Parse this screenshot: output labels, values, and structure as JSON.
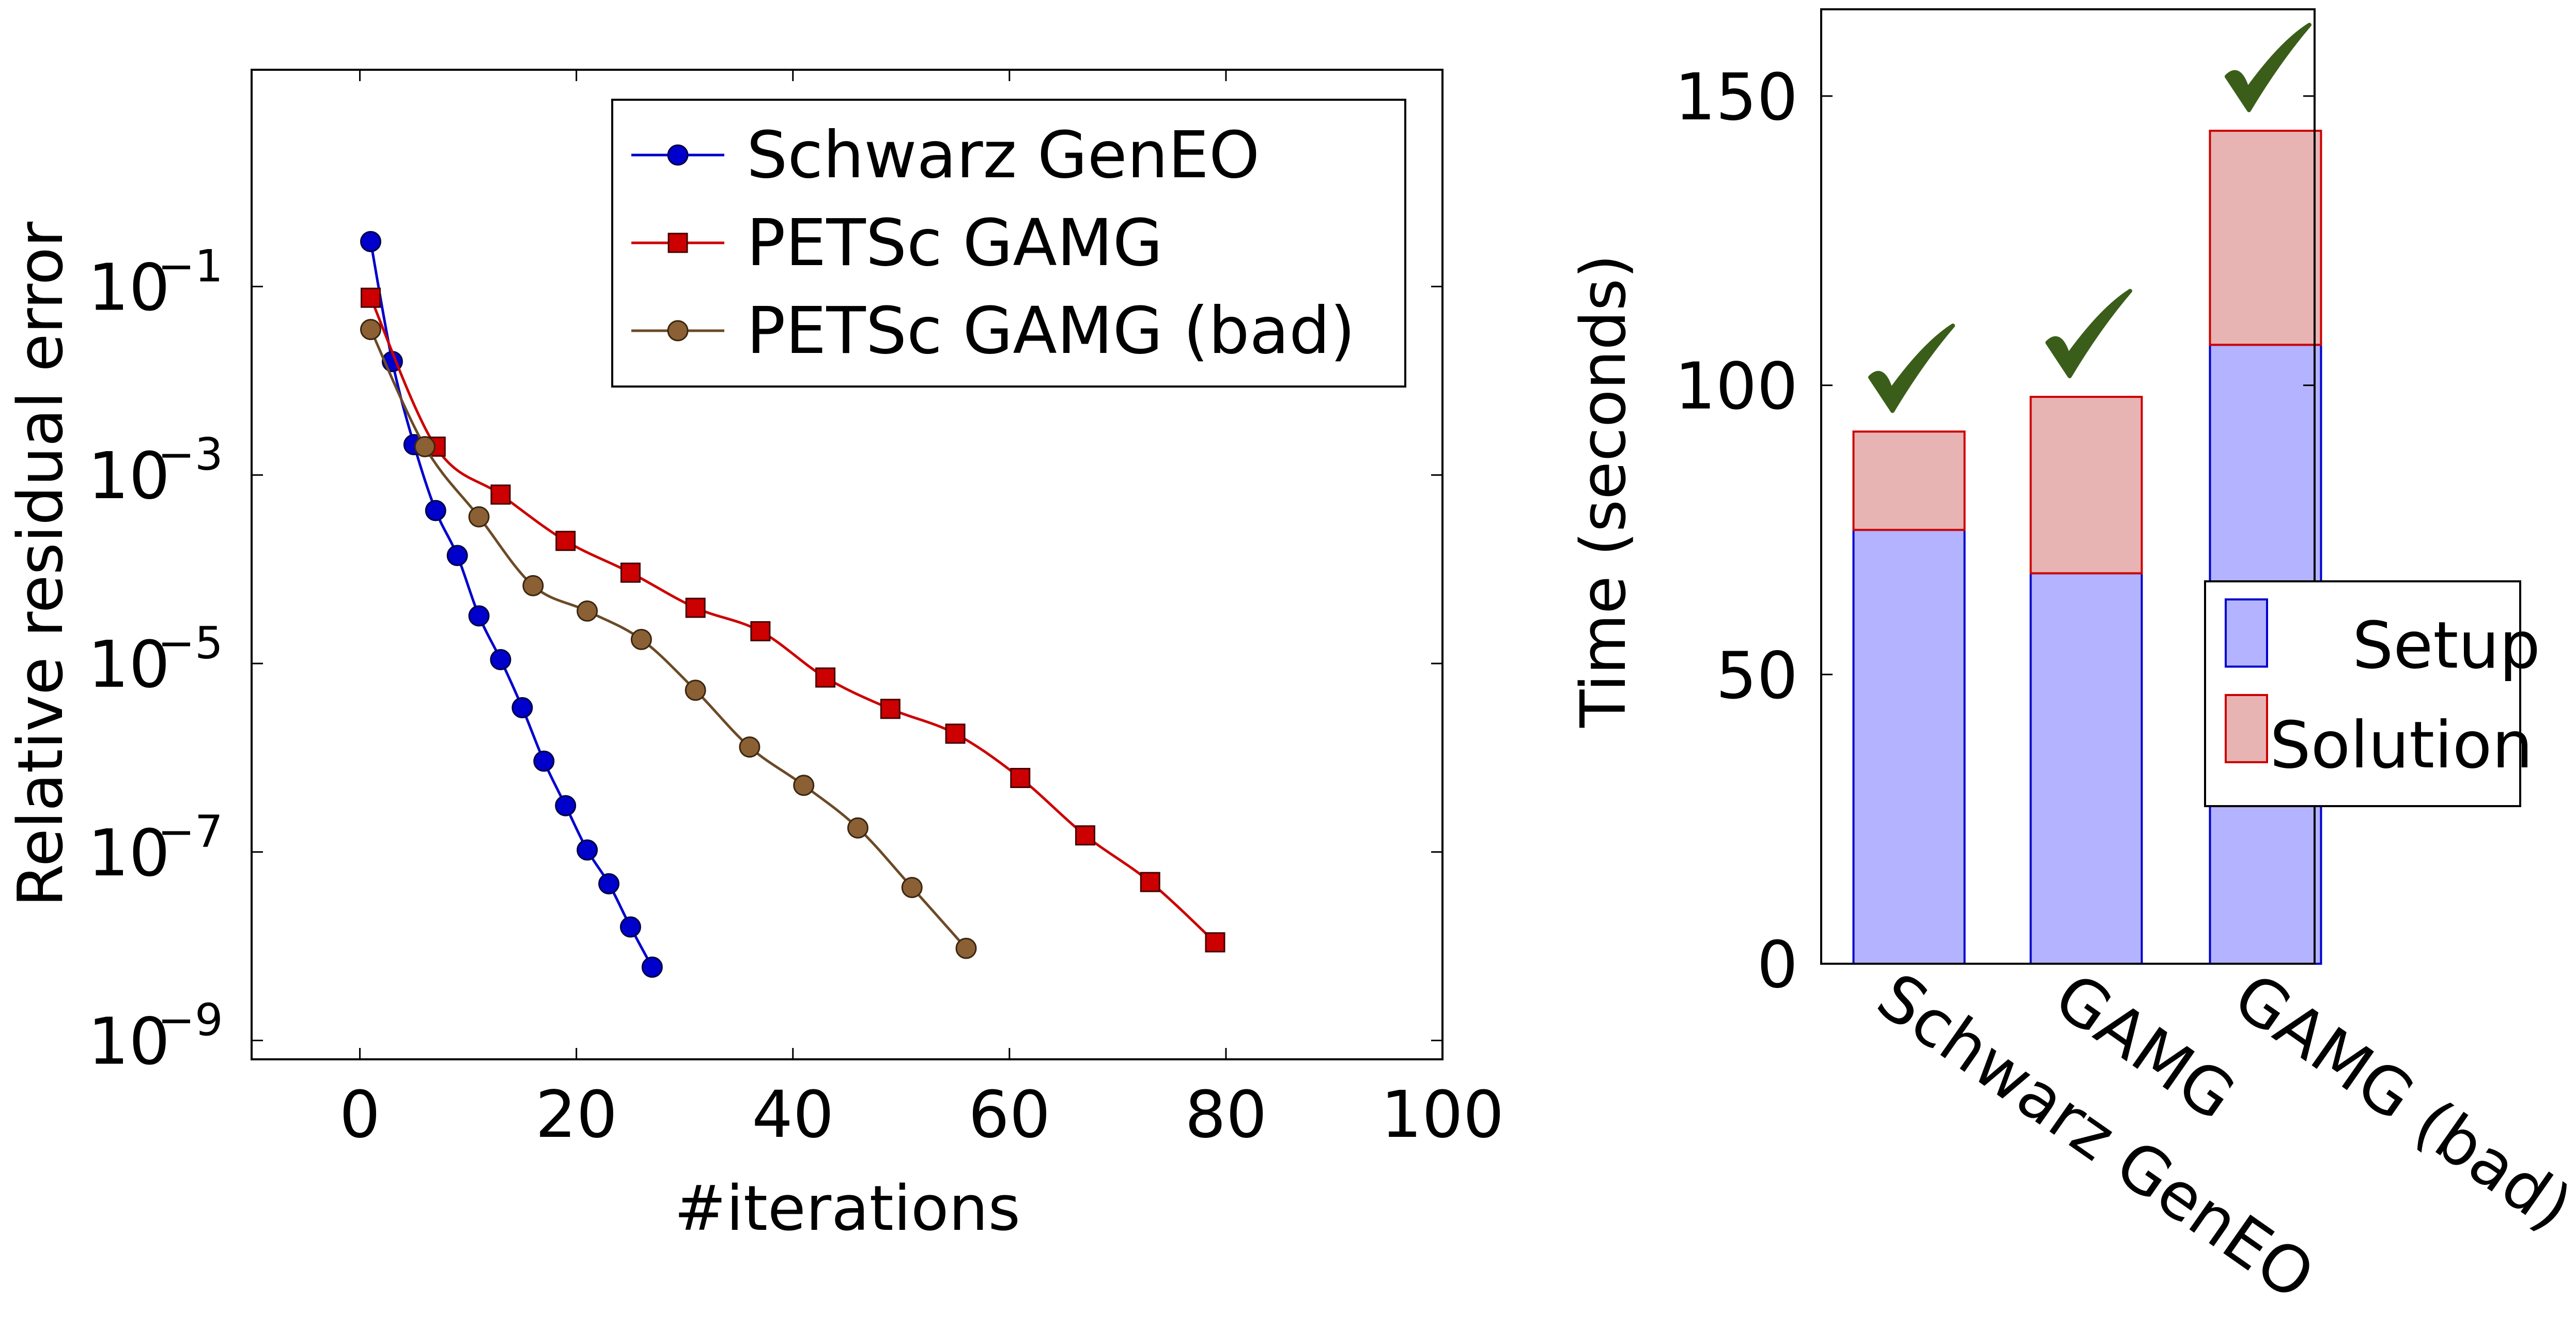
{
  "chart_data": [
    {
      "type": "line",
      "xlabel": "#iterations",
      "ylabel": "Relative residual error",
      "xlim": [
        -10,
        100
      ],
      "ylim_log10": [
        -9.2,
        1.3
      ],
      "y_scale": "log",
      "grid": false,
      "legend_position": "top-right",
      "x_ticks": [
        {
          "value": 0,
          "label": "0"
        },
        {
          "value": 20,
          "label": "20"
        },
        {
          "value": 40,
          "label": "40"
        },
        {
          "value": 60,
          "label": "60"
        },
        {
          "value": 80,
          "label": "80"
        },
        {
          "value": 100,
          "label": "100"
        }
      ],
      "y_ticks": [
        {
          "exp": -1,
          "base": "10",
          "sup": "−1"
        },
        {
          "exp": -3,
          "base": "10",
          "sup": "−3"
        },
        {
          "exp": -5,
          "base": "10",
          "sup": "−5"
        },
        {
          "exp": -7,
          "base": "10",
          "sup": "−7"
        },
        {
          "exp": -9,
          "base": "10",
          "sup": "−9"
        }
      ],
      "series": [
        {
          "name": "Schwarz GenEO",
          "color": "#0000cc",
          "marker": "circle",
          "x": [
            1,
            3,
            5,
            7,
            9,
            11,
            13,
            15,
            17,
            19,
            21,
            23,
            25,
            27
          ],
          "y": [
            0.3,
            0.016,
            0.0021,
            0.00042,
            0.00014,
            3.2e-05,
            1.1e-05,
            3.4e-06,
            9.2e-07,
            3.1e-07,
            1.05e-07,
            4.6e-08,
            1.6e-08,
            6e-09
          ]
        },
        {
          "name": "PETSc GAMG",
          "color": "#cc0000",
          "marker": "square",
          "x": [
            1,
            7,
            13,
            19,
            25,
            31,
            37,
            43,
            49,
            55,
            61,
            67,
            73,
            79
          ],
          "y": [
            0.076,
            0.002,
            0.00062,
            0.0002,
            9.2e-05,
            3.9e-05,
            2.2e-05,
            7.1e-06,
            3.3e-06,
            1.8e-06,
            6.1e-07,
            1.5e-07,
            4.8e-08,
            1.1e-08
          ]
        },
        {
          "name": "PETSc GAMG (bad)",
          "color": "#6b4a26",
          "marker": "circle",
          "x": [
            1,
            6,
            11,
            16,
            21,
            26,
            31,
            36,
            41,
            46,
            51,
            56
          ],
          "y": [
            0.035,
            0.002,
            0.00036,
            6.7e-05,
            3.6e-05,
            1.8e-05,
            5.2e-06,
            1.3e-06,
            5.1e-07,
            1.8e-07,
            4.2e-08,
            9.5e-09
          ]
        }
      ]
    },
    {
      "type": "bar",
      "stacked": true,
      "ylabel": "Time (seconds)",
      "ylim": [
        0,
        165
      ],
      "grid": false,
      "legend_position": "right",
      "categories": [
        "Schwarz GenEO",
        "GAMG",
        "GAMG (bad)"
      ],
      "y_ticks": [
        {
          "value": 0,
          "label": "0"
        },
        {
          "value": 50,
          "label": "50"
        },
        {
          "value": 100,
          "label": "100"
        },
        {
          "value": 150,
          "label": "150"
        }
      ],
      "series": [
        {
          "name": "Setup",
          "fill": "#b3b3ff",
          "stroke": "#0000cc",
          "values": [
            75,
            67.5,
            107
          ]
        },
        {
          "name": "Solution",
          "fill": "#e8b3b3",
          "stroke": "#cc0000",
          "values": [
            17,
            30.5,
            37
          ]
        }
      ],
      "annotations": {
        "icon": "checkmark-icon",
        "color": "#3a5e1a",
        "count": 3
      }
    }
  ]
}
